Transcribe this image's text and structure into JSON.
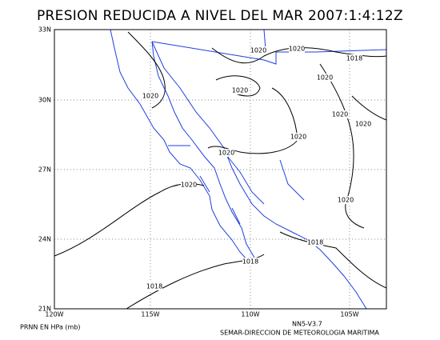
{
  "title": "PRESION REDUCIDA A NIVEL DEL MAR 2007:1:4:12Z",
  "latitude_labels": [
    "33N",
    "30N",
    "27N",
    "24N",
    "21N"
  ],
  "longitude_labels": [
    "120W",
    "115W",
    "110W",
    "105W"
  ],
  "contour_labels": [
    "1020",
    "1020",
    "1018",
    "1020",
    "1020",
    "1020",
    "1020",
    "1020",
    "1020",
    "1020",
    "1020",
    "1020",
    "1018",
    "1018",
    "1018"
  ],
  "footer": {
    "variable": "PRNN EN HPa (mb)",
    "version": "NN5-V3.7",
    "agency": "SEMAR-DIRECCION DE METEOROLOGIA MARITIMA"
  }
}
